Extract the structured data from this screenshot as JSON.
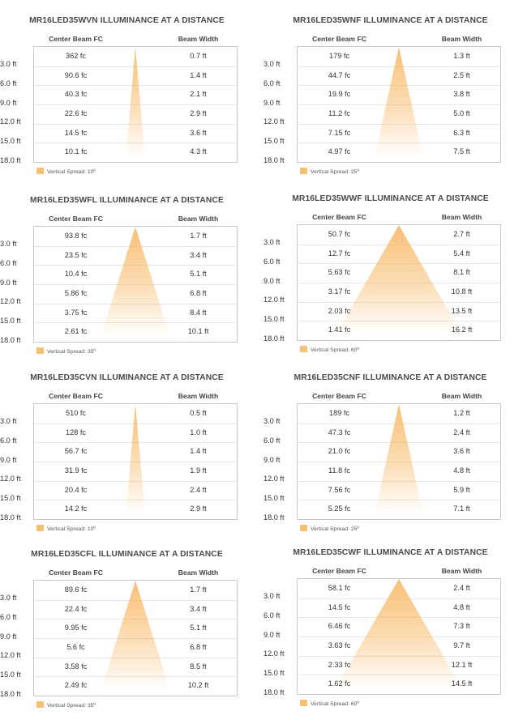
{
  "colors": {
    "beam": "#f7b55e",
    "legend_swatch": "#f7c072",
    "grid": "#e4e4e4",
    "border": "#c8c8c8"
  },
  "chart_data": [
    {
      "type": "table",
      "title": "MR16LED35WVN ILLUMINANCE AT A DISTANCE",
      "columns": [
        "Center Beam FC",
        "Beam Width"
      ],
      "distances": [
        "3.0 ft",
        "6.0 ft",
        "9.0 ft",
        "12.0 ft",
        "15.0 ft",
        "18.0 ft"
      ],
      "center_beam_fc": [
        "362 fc",
        "90.6 fc",
        "40.3 fc",
        "22.6 fc",
        "14.5 fc",
        "10.1 fc"
      ],
      "beam_width": [
        "0.7 ft",
        "1.4 ft",
        "2.1 ft",
        "2.9 ft",
        "3.6 ft",
        "4.3 ft"
      ],
      "spread_degrees": 10,
      "legend": "Vertical Spread: 10º"
    },
    {
      "type": "table",
      "title": "MR16LED35WNF ILLUMINANCE AT A DISTANCE",
      "columns": [
        "Center Beam FC",
        "Beam Width"
      ],
      "distances": [
        "3.0 ft",
        "6.0 ft",
        "9.0 ft",
        "12.0 ft",
        "15.0 ft",
        "18.0 ft"
      ],
      "center_beam_fc": [
        "179 fc",
        "44.7 fc",
        "19.9 fc",
        "11.2 fc",
        "7.15 fc",
        "4.97 fc"
      ],
      "beam_width": [
        "1.3 ft",
        "2.5 ft",
        "3.8 ft",
        "5.0 ft",
        "6.3 ft",
        "7.5 ft"
      ],
      "spread_degrees": 25,
      "legend": "Vertical Spread: 25º"
    },
    {
      "type": "table",
      "title": "MR16LED35WFL ILLUMINANCE AT A DISTANCE",
      "columns": [
        "Center Beam FC",
        "Beam Width"
      ],
      "distances": [
        "3.0 ft",
        "6.0 ft",
        "9.0 ft",
        "12.0 ft",
        "15.0 ft",
        "18.0 ft"
      ],
      "center_beam_fc": [
        "93.8 fc",
        "23.5 fc",
        "10.4 fc",
        "5.86 fc",
        "3.75 fc",
        "2.61 fc"
      ],
      "beam_width": [
        "1.7 ft",
        "3.4 ft",
        "5.1 ft",
        "6.8 ft",
        "8.4 ft",
        "10.1 ft"
      ],
      "spread_degrees": 35,
      "legend": "Vertical Spread: 35º"
    },
    {
      "type": "table",
      "title": "MR16LED35WWF ILLUMINANCE AT A DISTANCE",
      "columns": [
        "Center Beam FC",
        "Beam Width"
      ],
      "distances": [
        "3.0 ft",
        "6.0 ft",
        "9.0 ft",
        "12.0 ft",
        "15.0 ft",
        "18.0 ft"
      ],
      "center_beam_fc": [
        "50.7 fc",
        "12.7 fc",
        "5.63 fc",
        "3.17 fc",
        "2.03 fc",
        "1.41 fc"
      ],
      "beam_width": [
        "2.7 ft",
        "5.4 ft",
        "8.1 ft",
        "10.8 ft",
        "13.5 ft",
        "16.2 ft"
      ],
      "spread_degrees": 60,
      "legend": "Vertical Spread: 60º"
    },
    {
      "type": "table",
      "title": "MR16LED35CVN ILLUMINANCE AT A DISTANCE",
      "columns": [
        "Center Beam FC",
        "Beam Width"
      ],
      "distances": [
        "3.0 ft",
        "6.0 ft",
        "9.0 ft",
        "12.0 ft",
        "15.0 ft",
        "18.0 ft"
      ],
      "center_beam_fc": [
        "510 fc",
        "128 fc",
        "56.7 fc",
        "31.9 fc",
        "20.4 fc",
        "14.2 fc"
      ],
      "beam_width": [
        "0.5 ft",
        "1.0 ft",
        "1.4 ft",
        "1.9 ft",
        "2.4 ft",
        "2.9 ft"
      ],
      "spread_degrees": 10,
      "legend": "Vertical Spread: 10º"
    },
    {
      "type": "table",
      "title": "MR16LED35CNF ILLUMINANCE AT A DISTANCE",
      "columns": [
        "Center Beam FC",
        "Beam Width"
      ],
      "distances": [
        "3.0 ft",
        "6.0 ft",
        "9.0 ft",
        "12.0 ft",
        "15.0 ft",
        "18.0 ft"
      ],
      "center_beam_fc": [
        "189 fc",
        "47.3 fc",
        "21.0 fc",
        "11.8 fc",
        "7.56 fc",
        "5.25 fc"
      ],
      "beam_width": [
        "1.2 ft",
        "2.4 ft",
        "3.6 ft",
        "4.8 ft",
        "5.9 ft",
        "7.1 ft"
      ],
      "spread_degrees": 25,
      "legend": "Vertical Spread: 25º"
    },
    {
      "type": "table",
      "title": "MR16LED35CFL ILLUMINANCE AT A DISTANCE",
      "columns": [
        "Center Beam FC",
        "Beam Width"
      ],
      "distances": [
        "3.0 ft",
        "6.0 ft",
        "9.0 ft",
        "12.0 ft",
        "15.0 ft",
        "18.0 ft"
      ],
      "center_beam_fc": [
        "89.6 fc",
        "22.4 fc",
        "9.95 fc",
        "5.6 fc",
        "3.58 fc",
        "2.49 fc"
      ],
      "beam_width": [
        "1.7 ft",
        "3.4 ft",
        "5.1 ft",
        "6.8 ft",
        "8.5 ft",
        "10.2 ft"
      ],
      "spread_degrees": 35,
      "legend": "Vertical Spread: 35º"
    },
    {
      "type": "table",
      "title": "MR16LED35CWF ILLUMINANCE AT A DISTANCE",
      "columns": [
        "Center Beam FC",
        "Beam Width"
      ],
      "distances": [
        "3.0 ft",
        "6.0 ft",
        "9.0 ft",
        "12.0 ft",
        "15.0 ft",
        "18.0 ft"
      ],
      "center_beam_fc": [
        "58.1 fc",
        "14.5 fc",
        "6.46 fc",
        "3.63 fc",
        "2.33 fc",
        "1.62 fc"
      ],
      "beam_width": [
        "2.4 ft",
        "4.8 ft",
        "7.3 ft",
        "9.7 ft",
        "12.1 ft",
        "14.5 ft"
      ],
      "spread_degrees": 60,
      "legend": "Vertical Spread: 60º"
    }
  ]
}
